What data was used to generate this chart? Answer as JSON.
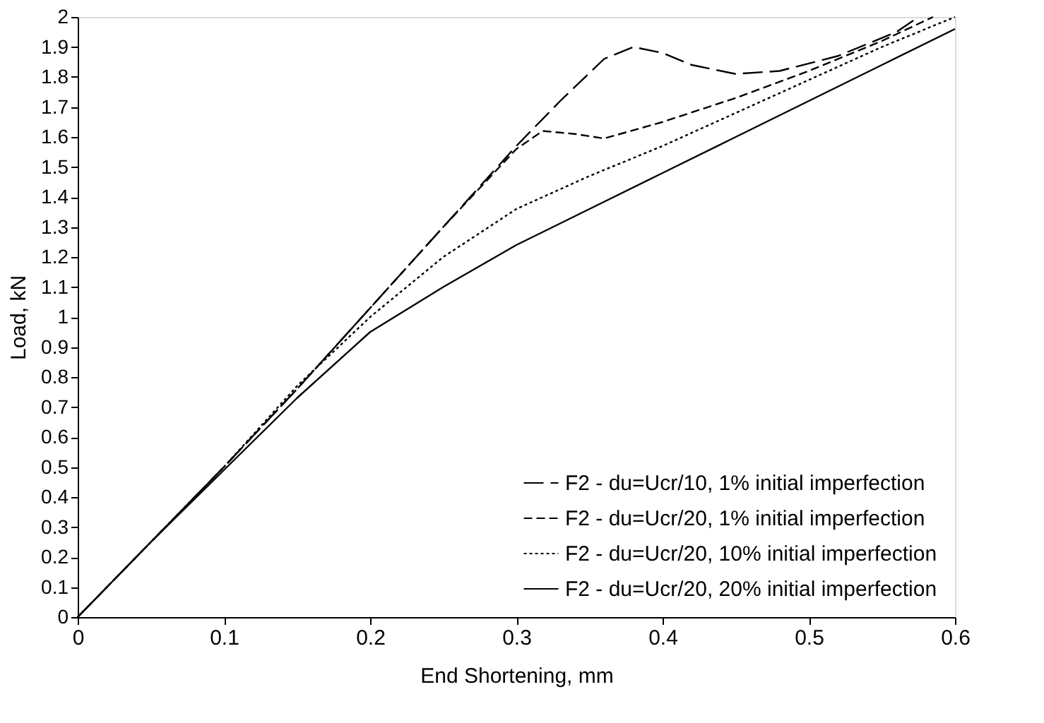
{
  "chart_data": {
    "type": "line",
    "xlabel": "End Shortening, mm",
    "ylabel": "Load, kN",
    "xlim": [
      0,
      0.6
    ],
    "ylim": [
      0,
      2
    ],
    "xticks": [
      0,
      0.1,
      0.2,
      0.3,
      0.4,
      0.5,
      0.6
    ],
    "yticks": [
      0,
      0.1,
      0.2,
      0.3,
      0.4,
      0.5,
      0.6,
      0.7,
      0.8,
      0.9,
      1,
      1.1,
      1.2,
      1.3,
      1.4,
      1.5,
      1.6,
      1.7,
      1.8,
      1.9,
      2
    ],
    "grid": false,
    "legend": "bottom right",
    "marker": "none",
    "series": [
      {
        "name": "F2 - du=Ucr/10, 1% initial imperfection",
        "color": "#000000",
        "line_style": "dashed",
        "x": [
          0,
          0.05,
          0.1,
          0.15,
          0.2,
          0.25,
          0.3,
          0.33,
          0.36,
          0.38,
          0.4,
          0.42,
          0.45,
          0.48,
          0.52,
          0.56,
          0.575
        ],
        "values": [
          0,
          0.25,
          0.5,
          0.76,
          1.03,
          1.3,
          1.57,
          1.72,
          1.86,
          1.9,
          1.88,
          1.84,
          1.81,
          1.82,
          1.87,
          1.95,
          2.0
        ]
      },
      {
        "name": "F2 - du=Ucr/20, 1% initial imperfection",
        "color": "#000000",
        "line_style": "dashed",
        "x": [
          0,
          0.05,
          0.1,
          0.15,
          0.2,
          0.25,
          0.3,
          0.318,
          0.34,
          0.36,
          0.4,
          0.45,
          0.5,
          0.55,
          0.585
        ],
        "values": [
          0,
          0.25,
          0.5,
          0.76,
          1.03,
          1.3,
          1.56,
          1.62,
          1.61,
          1.595,
          1.65,
          1.73,
          1.82,
          1.92,
          2.0
        ]
      },
      {
        "name": "F2 - du=Ucr/20, 10% initial imperfection",
        "color": "#000000",
        "line_style": "dotted",
        "x": [
          0,
          0.05,
          0.1,
          0.15,
          0.2,
          0.25,
          0.3,
          0.35,
          0.4,
          0.45,
          0.5,
          0.55,
          0.6
        ],
        "values": [
          0,
          0.25,
          0.5,
          0.77,
          1.0,
          1.2,
          1.36,
          1.47,
          1.57,
          1.68,
          1.79,
          1.9,
          2.0
        ]
      },
      {
        "name": "F2 - du=Ucr/20, 20% initial imperfection",
        "color": "#000000",
        "line_style": "solid",
        "x": [
          0,
          0.05,
          0.1,
          0.15,
          0.2,
          0.25,
          0.3,
          0.35,
          0.4,
          0.45,
          0.5,
          0.55,
          0.6
        ],
        "values": [
          0,
          0.25,
          0.49,
          0.73,
          0.95,
          1.1,
          1.24,
          1.36,
          1.48,
          1.6,
          1.72,
          1.84,
          1.96
        ]
      }
    ]
  }
}
